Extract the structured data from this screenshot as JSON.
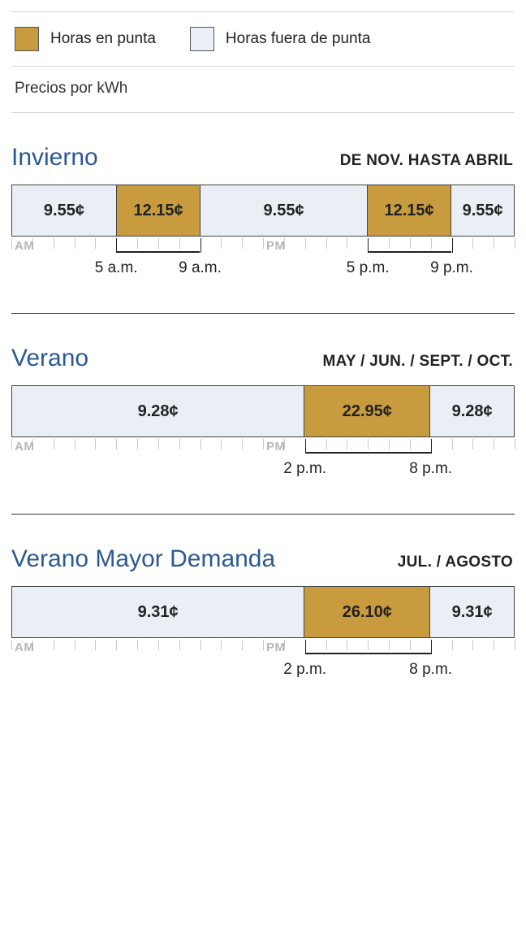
{
  "colors": {
    "peak": "#c89b3f",
    "offpeak": "#e9eff4",
    "season_title": "#2b5a93"
  },
  "legend": {
    "peak_label": "Horas en punta",
    "offpeak_label": "Horas fuera de punta"
  },
  "subtitle": "Precios por kWh",
  "axis_labels": {
    "am": "AM",
    "pm": "PM"
  },
  "seasons": [
    {
      "title": "Invierno",
      "months": "DE NOV. HASTA ABRIL",
      "segments": [
        {
          "start": 0,
          "end": 5,
          "type": "offpeak",
          "price": "9.55¢"
        },
        {
          "start": 5,
          "end": 9,
          "type": "peak",
          "price": "12.15¢"
        },
        {
          "start": 9,
          "end": 17,
          "type": "offpeak",
          "price": "9.55¢"
        },
        {
          "start": 17,
          "end": 21,
          "type": "peak",
          "price": "12.15¢"
        },
        {
          "start": 21,
          "end": 24,
          "type": "offpeak",
          "price": "9.55¢"
        }
      ],
      "hour_marks": [
        {
          "hour": 5,
          "label": "5 a.m."
        },
        {
          "hour": 9,
          "label": "9 a.m."
        },
        {
          "hour": 17,
          "label": "5 p.m."
        },
        {
          "hour": 21,
          "label": "9 p.m."
        }
      ]
    },
    {
      "title": "Verano",
      "months": "MAY / JUN. / SEPT. / OCT.",
      "segments": [
        {
          "start": 0,
          "end": 14,
          "type": "offpeak",
          "price": "9.28¢"
        },
        {
          "start": 14,
          "end": 20,
          "type": "peak",
          "price": "22.95¢"
        },
        {
          "start": 20,
          "end": 24,
          "type": "offpeak",
          "price": "9.28¢"
        }
      ],
      "hour_marks": [
        {
          "hour": 14,
          "label": "2 p.m."
        },
        {
          "hour": 20,
          "label": "8 p.m."
        }
      ]
    },
    {
      "title": "Verano Mayor Demanda",
      "months": "JUL. / AGOSTO",
      "segments": [
        {
          "start": 0,
          "end": 14,
          "type": "offpeak",
          "price": "9.31¢"
        },
        {
          "start": 14,
          "end": 20,
          "type": "peak",
          "price": "26.10¢"
        },
        {
          "start": 20,
          "end": 24,
          "type": "offpeak",
          "price": "9.31¢"
        }
      ],
      "hour_marks": [
        {
          "hour": 14,
          "label": "2 p.m."
        },
        {
          "hour": 20,
          "label": "8 p.m."
        }
      ]
    }
  ]
}
